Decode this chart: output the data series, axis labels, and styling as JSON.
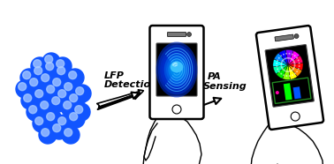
{
  "background_color": "#ffffff",
  "arrow1_label_line1": "LFP",
  "arrow1_label_line2": "Detection",
  "arrow2_label_line1": "PA",
  "arrow2_label_line2": "Sensing",
  "sphere_base_color": "#1155ff",
  "sphere_highlight_color": "#aaccff",
  "wheel_colors": [
    "#ff0000",
    "#ff8800",
    "#ffff00",
    "#88ff00",
    "#00ee00",
    "#00ffaa",
    "#00ffff",
    "#0088ff",
    "#0000ff",
    "#8800ff",
    "#ff00ff",
    "#ff0066"
  ],
  "bar_green": "#00ff00",
  "bar_blue": "#0055ff",
  "bar_chart_border": "#228822",
  "dot_pink": "#ff00aa",
  "figsize": [
    3.78,
    1.86
  ],
  "dpi": 100
}
